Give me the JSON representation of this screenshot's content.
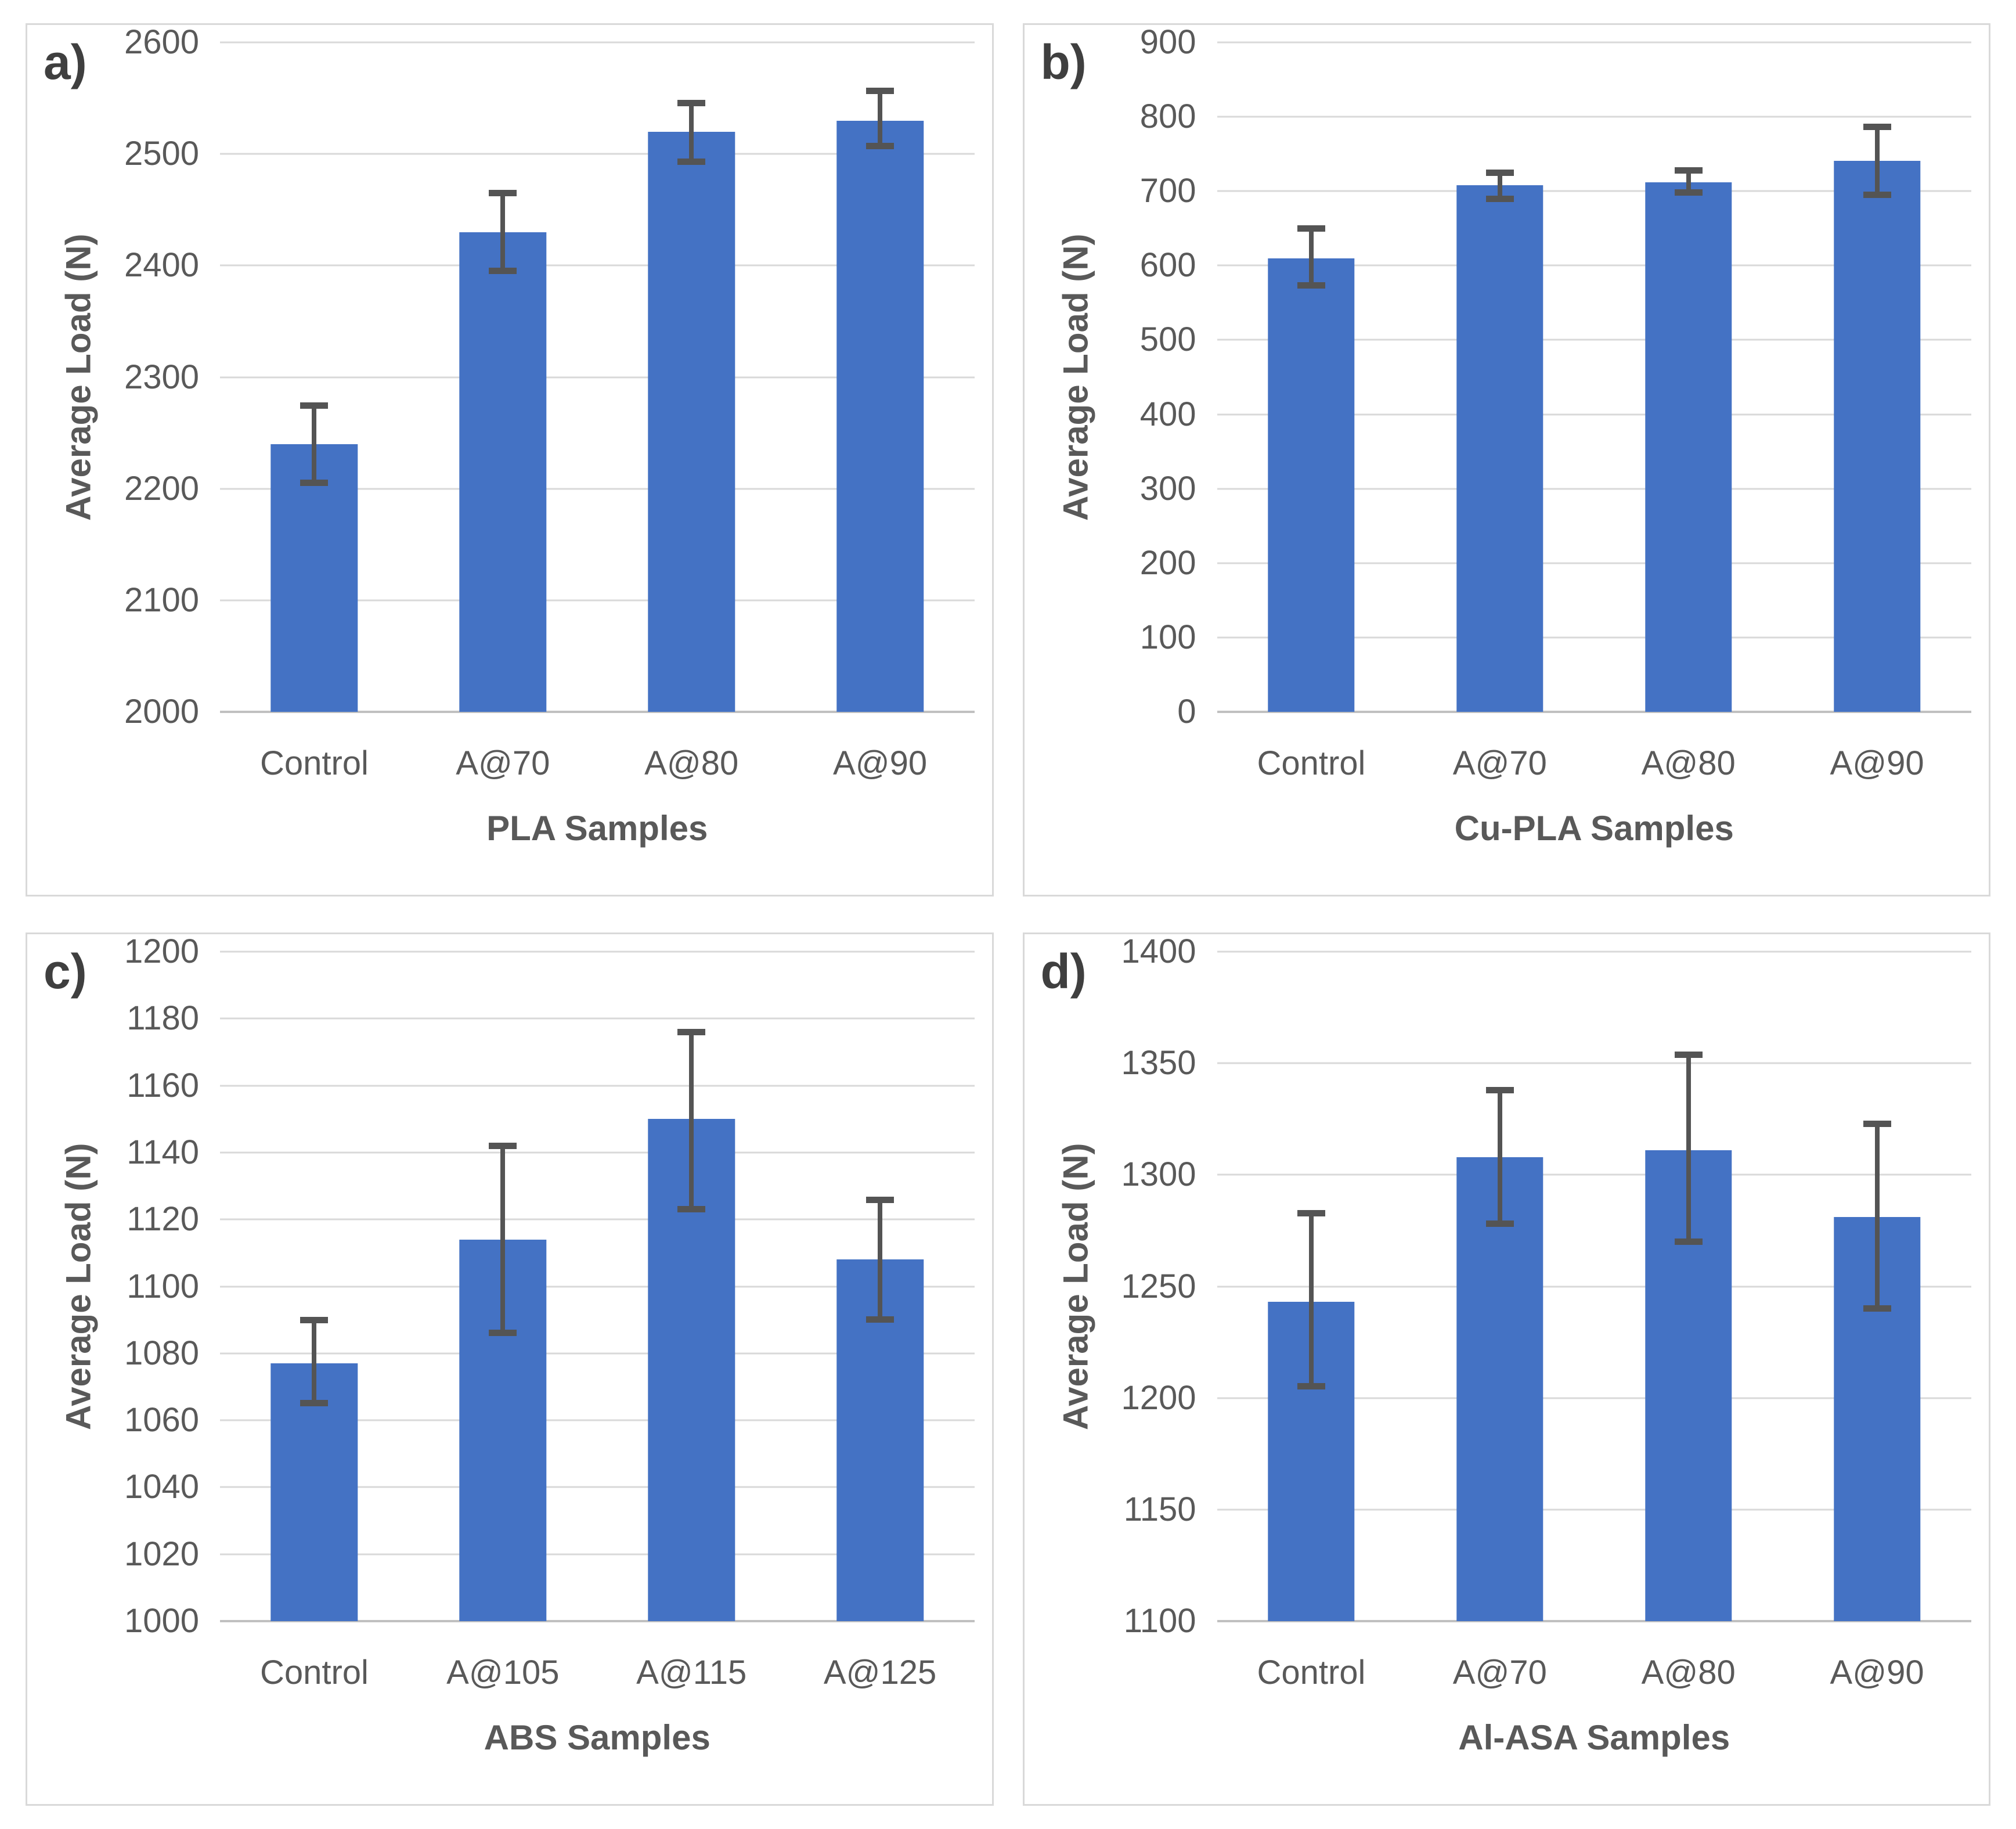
{
  "colors": {
    "bar": "#4472C4",
    "error_bar": "#545454",
    "gridline": "#d9d9d9",
    "baseline": "#c0c0c0",
    "tick_text": "#595959",
    "axis_title_text": "#595959",
    "panel_letter_text": "#3f3f3f",
    "panel_border": "#d9d9d9"
  },
  "chart_data": [
    {
      "type": "bar",
      "panel_label": "a)",
      "ylabel": "Average Load (N)",
      "xlabel": "PLA Samples",
      "ylim": [
        2000,
        2600
      ],
      "ytick_step": 100,
      "grid": true,
      "legend": false,
      "categories": [
        "Control",
        "A@70",
        "A@80",
        "A@90"
      ],
      "values": [
        2240,
        2430,
        2520,
        2530
      ],
      "error_plus": [
        35,
        35,
        26,
        27
      ],
      "error_minus": [
        35,
        35,
        27,
        23
      ]
    },
    {
      "type": "bar",
      "panel_label": "b)",
      "ylabel": "Average Load (N)",
      "xlabel": "Cu-PLA Samples",
      "ylim": [
        0,
        900
      ],
      "ytick_step": 100,
      "grid": true,
      "legend": false,
      "categories": [
        "Control",
        "A@70",
        "A@80",
        "A@90"
      ],
      "values": [
        610,
        708,
        712,
        741
      ],
      "error_plus": [
        40,
        17,
        16,
        46
      ],
      "error_minus": [
        37,
        19,
        14,
        46
      ]
    },
    {
      "type": "bar",
      "panel_label": "c)",
      "ylabel": "Average Load (N)",
      "xlabel": "ABS Samples",
      "ylim": [
        1000,
        1200
      ],
      "ytick_step": 20,
      "grid": true,
      "legend": false,
      "categories": [
        "Control",
        "A@105",
        "A@115",
        "A@125"
      ],
      "values": [
        1077,
        1114,
        1150,
        1108
      ],
      "error_plus": [
        13,
        28,
        26,
        18
      ],
      "error_minus": [
        12,
        28,
        27,
        18
      ]
    },
    {
      "type": "bar",
      "panel_label": "d)",
      "ylabel": "Average Load (N)",
      "xlabel": "Al-ASA Samples",
      "ylim": [
        1100,
        1400
      ],
      "ytick_step": 50,
      "grid": true,
      "legend": false,
      "categories": [
        "Control",
        "A@70",
        "A@80",
        "A@90"
      ],
      "values": [
        1243,
        1308,
        1311,
        1281
      ],
      "error_plus": [
        40,
        30,
        43,
        42
      ],
      "error_minus": [
        38,
        30,
        41,
        41
      ]
    }
  ]
}
